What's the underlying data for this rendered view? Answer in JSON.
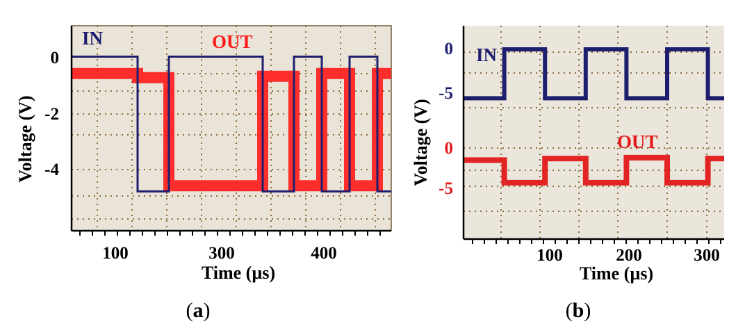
{
  "chart_data": [
    {
      "type": "line",
      "caption": "(a)",
      "caption_letter": "a",
      "xlabel": "Time (µs)",
      "ylabel": "Voltage (V)",
      "xlim": [
        0,
        460
      ],
      "ylim": [
        -6.2,
        1.1
      ],
      "x_ticks": [
        100,
        300,
        400
      ],
      "y_ticks": [
        0,
        -2,
        -4
      ],
      "grid": true,
      "series": [
        {
          "name": "IN",
          "color": "#1d1f6e",
          "x": [
            0,
            95,
            95,
            140,
            140,
            275,
            275,
            320,
            320,
            360,
            360,
            400,
            400,
            440,
            440,
            460
          ],
          "y": [
            0,
            0,
            -4.8,
            -4.8,
            0,
            0,
            -4.8,
            -4.8,
            0,
            0,
            -4.8,
            -4.8,
            0,
            0,
            -4.8,
            -4.8
          ]
        },
        {
          "name": "OUT",
          "color": "#ff1a1a",
          "x": [
            0,
            95,
            95,
            140,
            140,
            275,
            275,
            320,
            320,
            360,
            360,
            400,
            400,
            440,
            440,
            460
          ],
          "y": [
            -0.6,
            -0.6,
            -0.75,
            -0.75,
            -4.6,
            -4.6,
            -0.7,
            -0.7,
            -4.6,
            -4.6,
            -0.6,
            -0.6,
            -4.6,
            -4.6,
            -0.6,
            -0.6
          ]
        }
      ]
    },
    {
      "type": "line",
      "caption": "(b)",
      "caption_letter": "b",
      "xlabel": "Time (µs)",
      "ylabel": "Voltage (V)",
      "xlim": [
        0,
        320
      ],
      "x_ticks": [
        100,
        200,
        300
      ],
      "y_ticks_top": [
        0,
        -5
      ],
      "y_ticks_bottom": [
        0,
        -5
      ],
      "grid": true,
      "series": [
        {
          "name": "IN",
          "color": "#1d1f6e",
          "x": [
            0,
            50,
            50,
            100,
            100,
            150,
            150,
            200,
            200,
            250,
            250,
            300,
            300,
            320
          ],
          "y": [
            -5.5,
            -5.5,
            0,
            0,
            -5.5,
            -5.5,
            0,
            0,
            -5.5,
            -5.5,
            0,
            0,
            -5.5,
            -5.5
          ]
        },
        {
          "name": "OUT",
          "color": "#e31919",
          "x": [
            0,
            50,
            50,
            100,
            100,
            150,
            150,
            200,
            200,
            250,
            250,
            300,
            300,
            320
          ],
          "y": [
            -1.5,
            -1.5,
            -4.3,
            -4.3,
            -1.3,
            -1.3,
            -4.3,
            -4.3,
            -1.2,
            -1.2,
            -4.3,
            -4.3,
            -1.3,
            -1.3
          ]
        }
      ]
    }
  ]
}
